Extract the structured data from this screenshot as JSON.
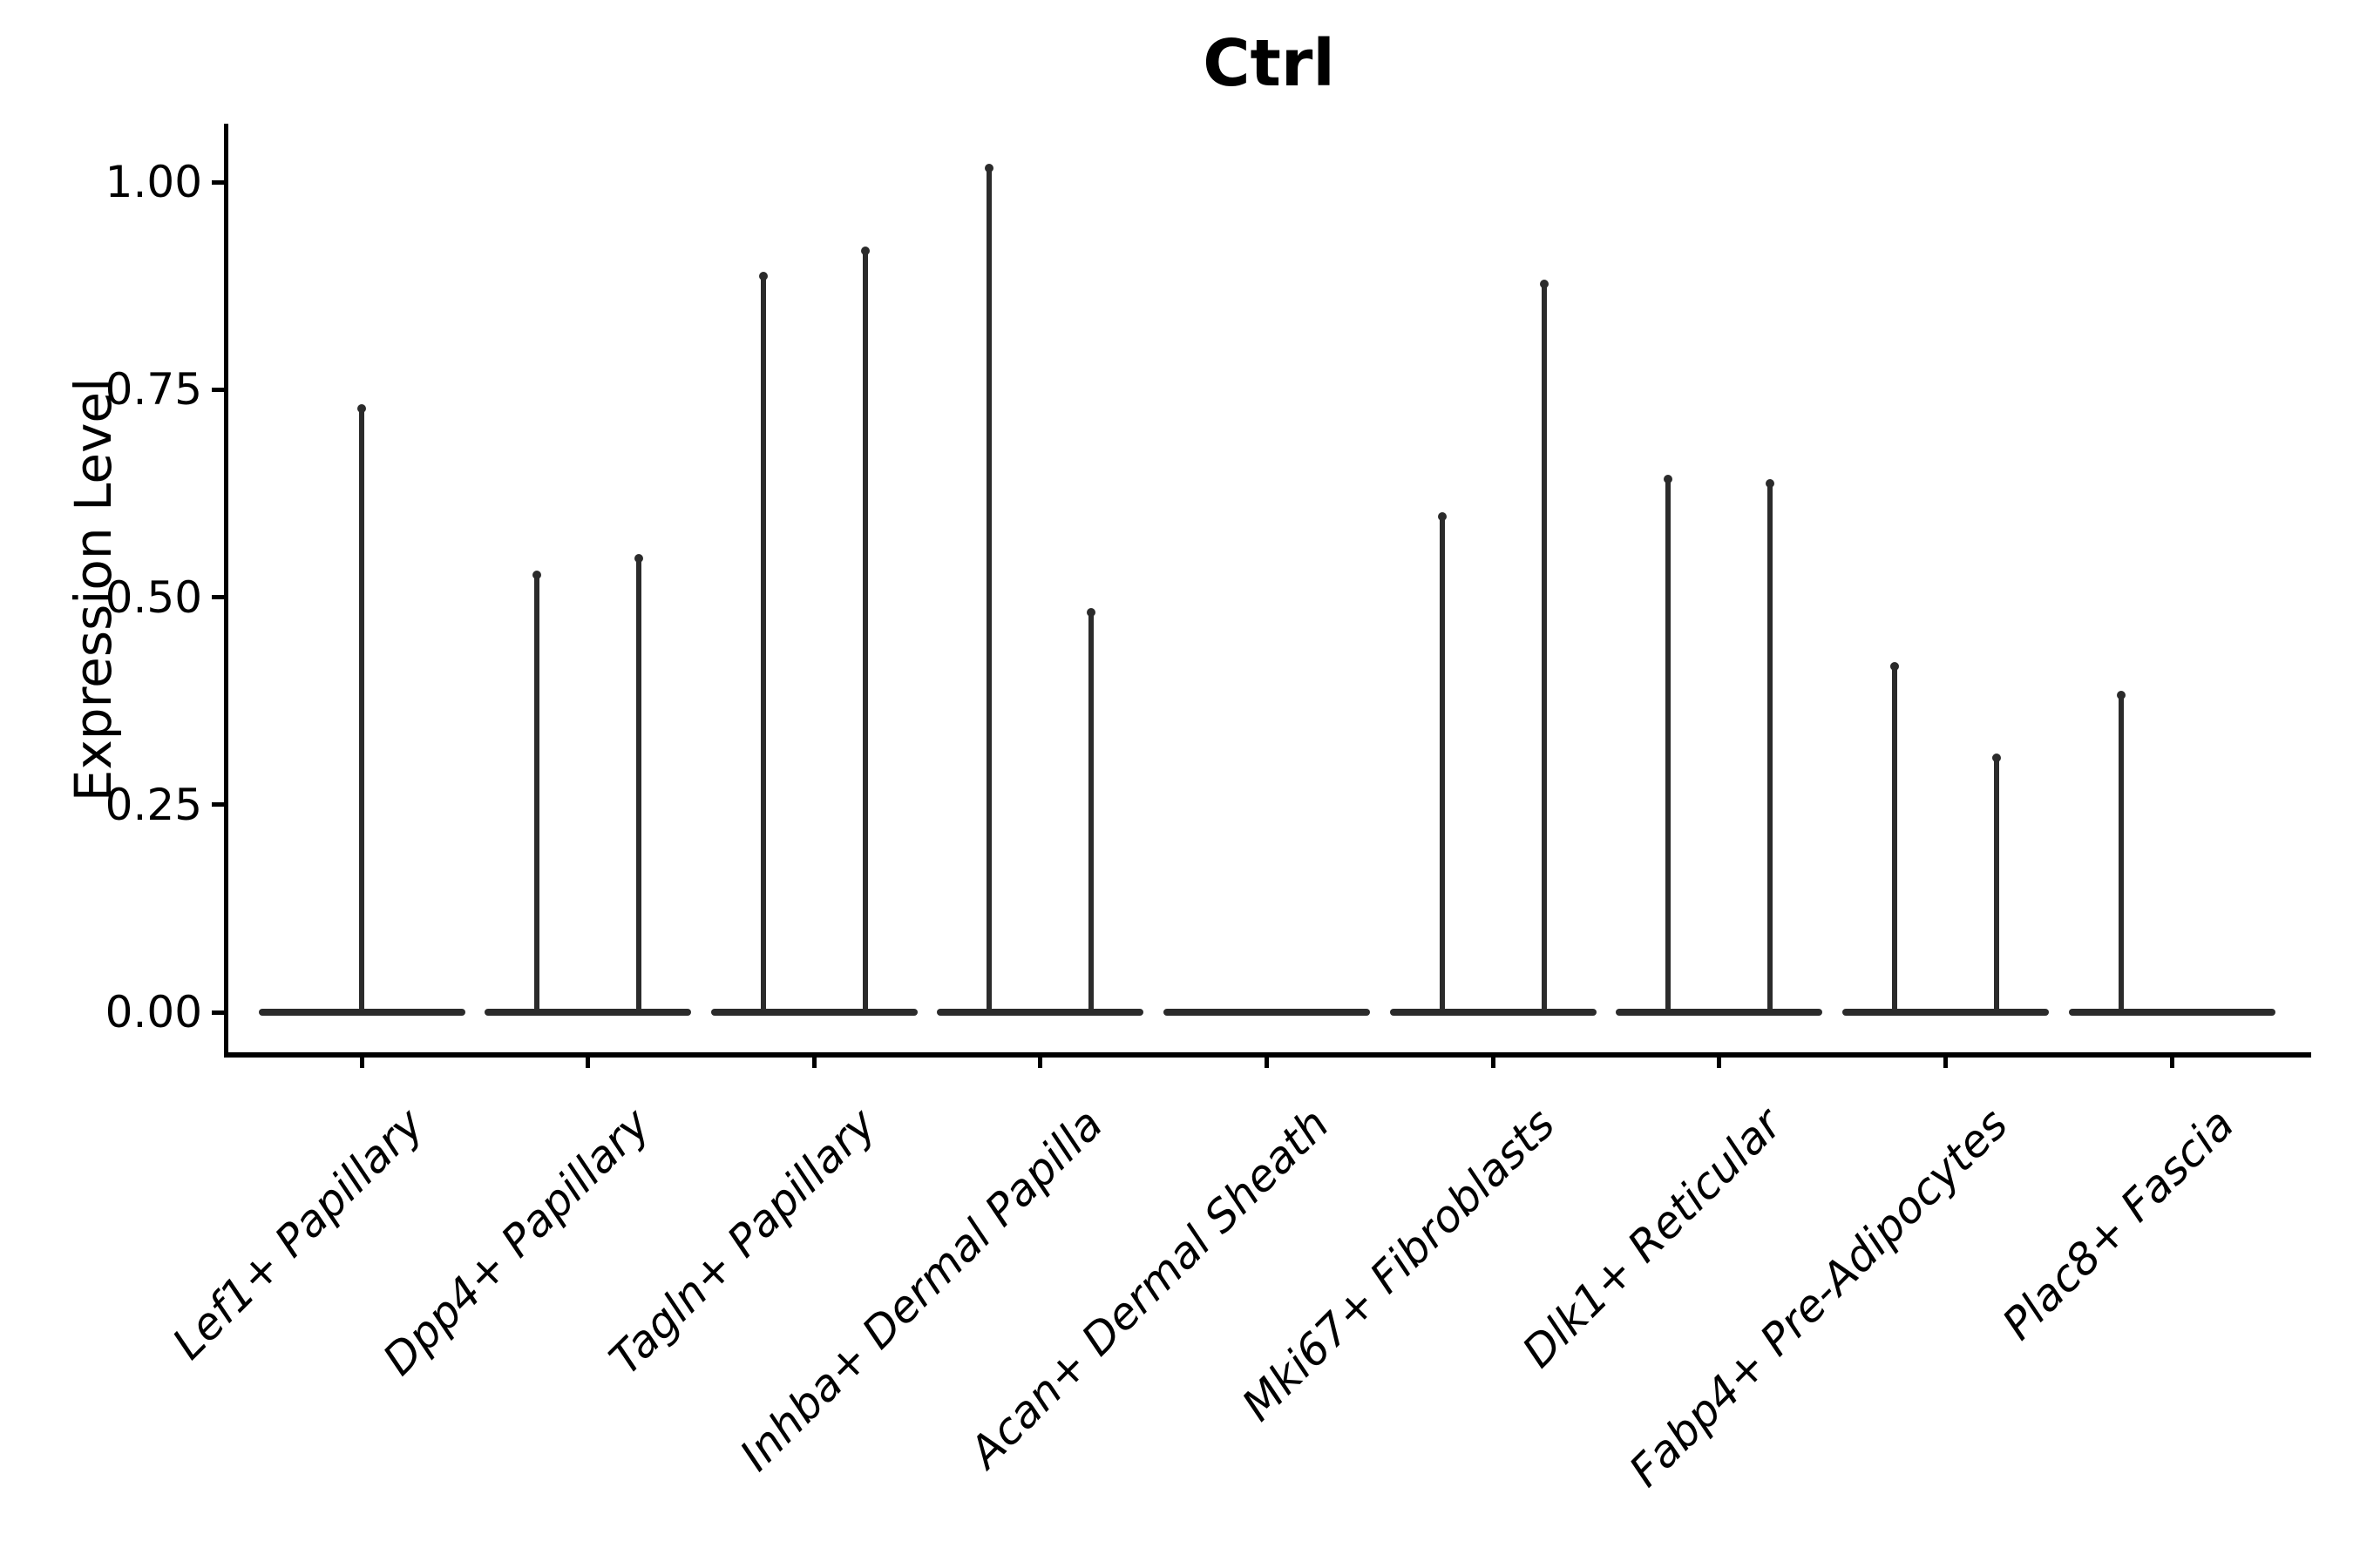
{
  "chart_data": {
    "type": "violin",
    "title": "Ctrl",
    "ylabel": "Expression Level",
    "xlabel": "",
    "yticks": [
      0.0,
      0.25,
      0.5,
      0.75,
      1.0
    ],
    "ytick_labels": [
      "0.00",
      "0.25",
      "0.50",
      "0.75",
      "1.00"
    ],
    "ylim": [
      0,
      1.07
    ],
    "grid": false,
    "legend": "none",
    "line_color": "#2b2b2b",
    "axis_color": "#000000",
    "categories": [
      "Lef1+ Papillary",
      "Dpp4+ Papillary",
      "Tagln+ Papillary",
      "Inhba+ Dermal Papilla",
      "Acan+ Dermal Sheath",
      "Mki67+ Fibroblasts",
      "Dlk1+ Reticular",
      "Fabp4+ Pre-Adipocytes",
      "Plac8+ Fascia"
    ],
    "violins": [
      {
        "category": "Lef1+ Papillary",
        "needles": [
          {
            "pos": "center",
            "max": 0.73
          }
        ]
      },
      {
        "category": "Dpp4+ Papillary",
        "needles": [
          {
            "pos": "left",
            "max": 0.53
          },
          {
            "pos": "right",
            "max": 0.55
          }
        ]
      },
      {
        "category": "Tagln+ Papillary",
        "needles": [
          {
            "pos": "left",
            "max": 0.89
          },
          {
            "pos": "right",
            "max": 0.92
          }
        ]
      },
      {
        "category": "Inhba+ Dermal Papilla",
        "needles": [
          {
            "pos": "left",
            "max": 1.02
          },
          {
            "pos": "right",
            "max": 0.485
          }
        ]
      },
      {
        "category": "Acan+ Dermal Sheath",
        "needles": []
      },
      {
        "category": "Mki67+ Fibroblasts",
        "needles": [
          {
            "pos": "left",
            "max": 0.6
          },
          {
            "pos": "right",
            "max": 0.88
          }
        ]
      },
      {
        "category": "Dlk1+ Reticular",
        "needles": [
          {
            "pos": "left",
            "max": 0.645
          },
          {
            "pos": "right",
            "max": 0.64
          }
        ]
      },
      {
        "category": "Fabp4+ Pre-Adipocytes",
        "needles": [
          {
            "pos": "left",
            "max": 0.42
          },
          {
            "pos": "right",
            "max": 0.31
          }
        ]
      },
      {
        "category": "Plac8+ Fascia",
        "needles": [
          {
            "pos": "left",
            "max": 0.385
          }
        ]
      }
    ]
  }
}
